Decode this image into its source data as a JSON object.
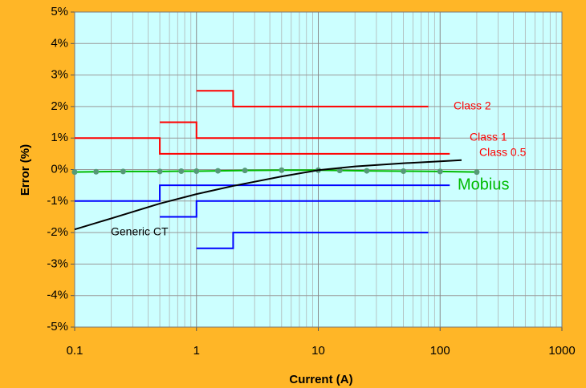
{
  "chart_data": {
    "type": "line",
    "xlabel": "Current (A)",
    "ylabel": "Error (%)",
    "xscale": "log",
    "grid": true,
    "xlim": [
      0.1,
      1000
    ],
    "xticks": [
      0.1,
      1,
      10,
      100,
      1000
    ],
    "ylim": [
      -5,
      5
    ],
    "yticks": [
      {
        "value": -5,
        "label": "-5%"
      },
      {
        "value": -4,
        "label": "-4%"
      },
      {
        "value": -3,
        "label": "-3%"
      },
      {
        "value": -2,
        "label": "-2%"
      },
      {
        "value": -1,
        "label": "-1%"
      },
      {
        "value": 0,
        "label": "0%"
      },
      {
        "value": 1,
        "label": "1%"
      },
      {
        "value": 2,
        "label": "2%"
      },
      {
        "value": 3,
        "label": "3%"
      },
      {
        "value": 4,
        "label": "4%"
      },
      {
        "value": 5,
        "label": "5%"
      }
    ],
    "series": [
      {
        "name": "Class 2",
        "color": "#ff0000",
        "x": [
          1,
          2,
          2,
          80
        ],
        "values": [
          2.5,
          2.5,
          2,
          2
        ]
      },
      {
        "name": "Class 1",
        "color": "#ff0000",
        "x": [
          0.5,
          1,
          1,
          100
        ],
        "values": [
          1.5,
          1.5,
          1,
          1
        ]
      },
      {
        "name": "Class 0.5",
        "color": "#ff0000",
        "x": [
          0.1,
          0.5,
          0.5,
          120
        ],
        "values": [
          1,
          1,
          0.5,
          0.5
        ]
      },
      {
        "color": "#0000ff",
        "x": [
          0.1,
          0.5,
          0.5,
          120
        ],
        "values": [
          -1,
          -1,
          -0.5,
          -0.5
        ]
      },
      {
        "color": "#0000ff",
        "x": [
          0.5,
          1,
          1,
          100
        ],
        "values": [
          -1.5,
          -1.5,
          -1,
          -1
        ]
      },
      {
        "color": "#0000ff",
        "x": [
          1,
          2,
          2,
          80
        ],
        "values": [
          -2.5,
          -2.5,
          -2,
          -2
        ]
      },
      {
        "name": "Mobius",
        "color": "#00bb00",
        "marker_color": "#559977",
        "x": [
          0.1,
          0.15,
          0.25,
          0.5,
          0.75,
          1,
          1.5,
          2.5,
          5,
          10,
          15,
          25,
          50,
          100,
          200
        ],
        "values": [
          -0.08,
          -0.07,
          -0.06,
          -0.06,
          -0.05,
          -0.05,
          -0.04,
          -0.03,
          -0.02,
          -0.02,
          -0.03,
          -0.04,
          -0.05,
          -0.06,
          -0.08
        ]
      },
      {
        "name": "Generic CT",
        "color": "#000000",
        "x": [
          0.1,
          0.2,
          0.5,
          1,
          2,
          5,
          10,
          20,
          50,
          100,
          150
        ],
        "values": [
          -1.9,
          -1.55,
          -1.08,
          -0.78,
          -0.52,
          -0.22,
          -0.02,
          0.1,
          0.2,
          0.26,
          0.3
        ]
      }
    ]
  }
}
